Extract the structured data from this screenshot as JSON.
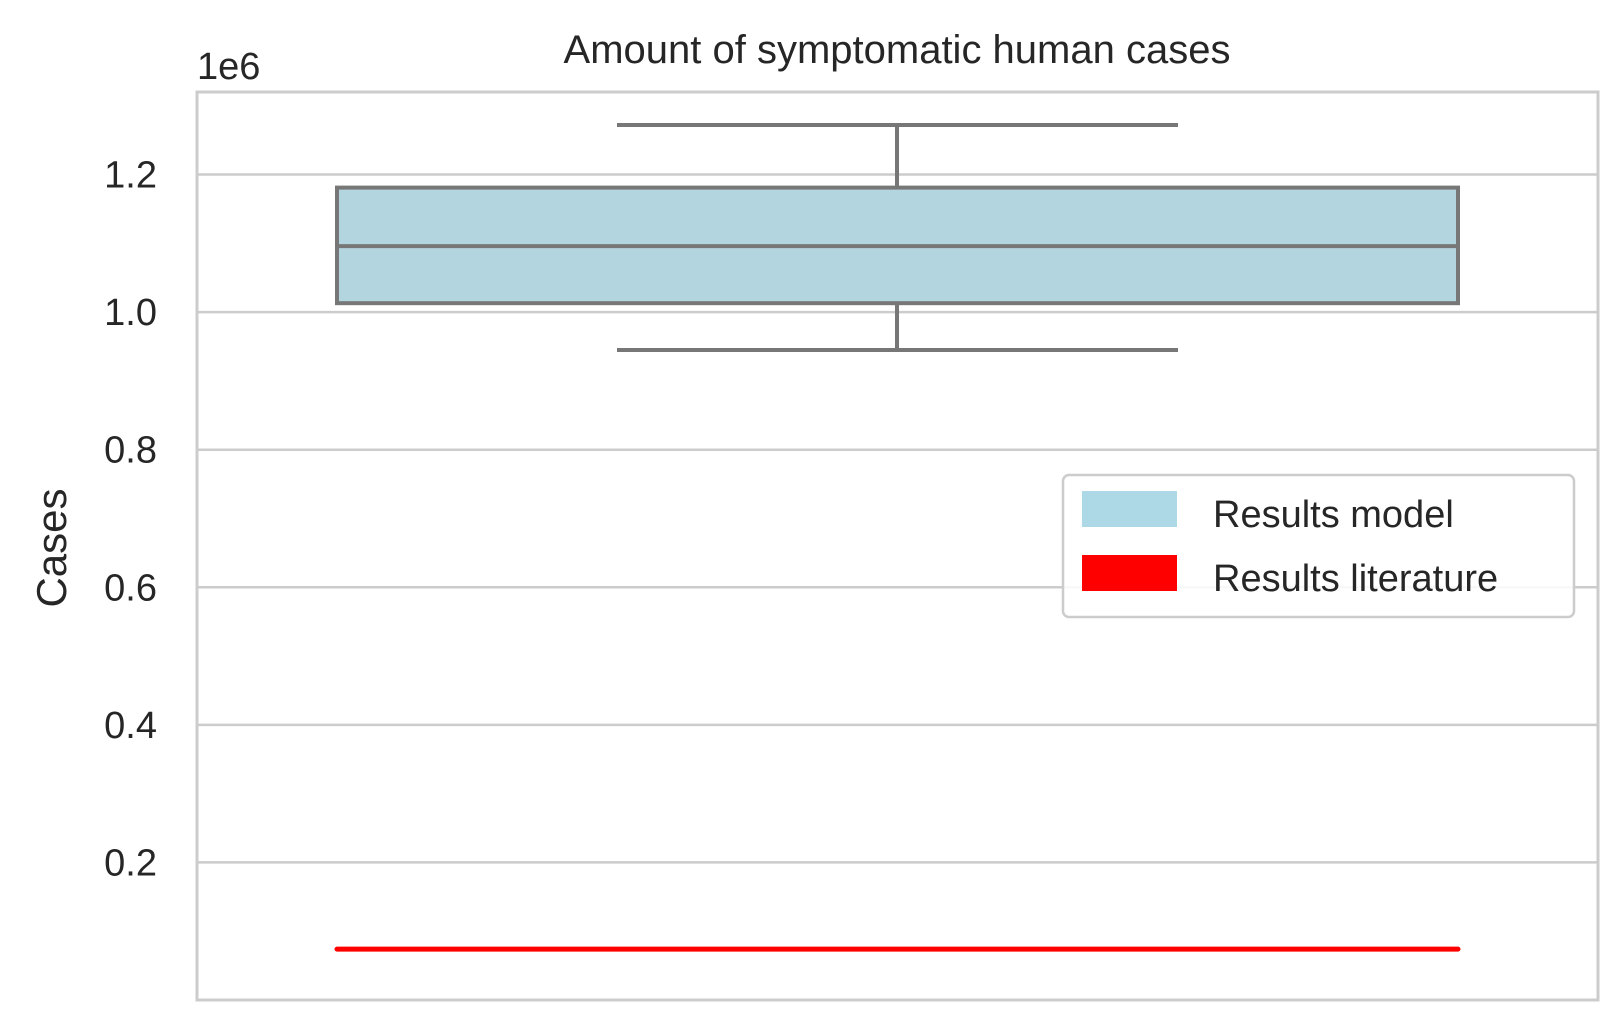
{
  "chart_data": {
    "type": "box",
    "title": "Amount of symptomatic human cases",
    "ylabel": "Cases",
    "xlabel": "",
    "offset_text": "1e6",
    "scale": 1000000,
    "ylim": [
      0.0,
      1.32
    ],
    "yticks": [
      0.2,
      0.4,
      0.6,
      0.8,
      1.0,
      1.2
    ],
    "ytick_labels": [
      "0.2",
      "0.4",
      "0.6",
      "0.8",
      "1.0",
      "1.2"
    ],
    "grid": true,
    "legend_position": "right",
    "box": {
      "whisker_low": 0.945,
      "q1": 1.013,
      "median": 1.096,
      "q3": 1.181,
      "whisker_high": 1.272
    },
    "literature_value": 0.074,
    "legend": [
      {
        "label": "Results model",
        "color": "#add8e6"
      },
      {
        "label": "Results literature",
        "color": "#ff0000"
      }
    ],
    "colors": {
      "box_fill": "#b3d5df",
      "box_edge": "#777777",
      "literature_line": "#ff0000",
      "grid": "#cccccc",
      "frame": "#cccccc"
    }
  }
}
